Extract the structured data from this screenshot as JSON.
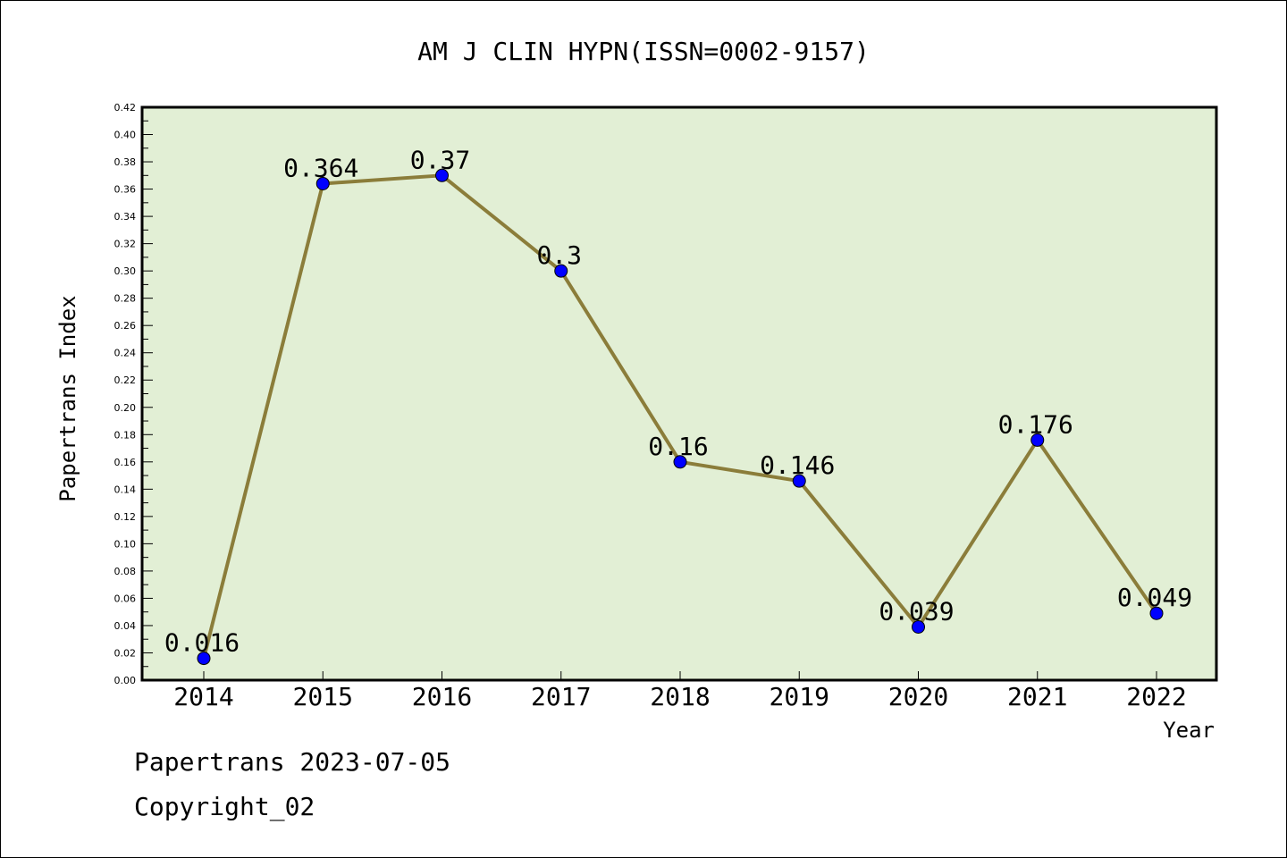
{
  "chart_data": {
    "type": "line",
    "title": "AM J CLIN HYPN(ISSN=0002-9157)",
    "xlabel": "Year",
    "ylabel": "Papertrans Index",
    "categories": [
      "2014",
      "2015",
      "2016",
      "2017",
      "2018",
      "2019",
      "2020",
      "2021",
      "2022"
    ],
    "series": [
      {
        "values": [
          0.016,
          0.364,
          0.37,
          0.3,
          0.16,
          0.146,
          0.039,
          0.176,
          0.049
        ],
        "labels": [
          "0.016",
          "0.364",
          "0.37",
          "0.3",
          "0.16",
          "0.146",
          "0.039",
          "0.176",
          "0.049"
        ]
      }
    ],
    "ylim": [
      0,
      0.42
    ],
    "ytick_labels": [
      "0.00",
      "0.02",
      "0.04",
      "0.06",
      "0.08",
      "0.10",
      "0.12",
      "0.14",
      "0.16",
      "0.18",
      "0.20",
      "0.22",
      "0.24",
      "0.26",
      "0.28",
      "0.30",
      "0.32",
      "0.34",
      "0.36",
      "0.38",
      "0.40",
      "0.42"
    ],
    "grid": false,
    "colors": {
      "plot_background": "#e2efd5",
      "line": "#8b7d3a",
      "marker": "#0000ff"
    }
  },
  "footer": {
    "stamp": "Papertrans 2023-07-05",
    "copyright": "Copyright_02"
  }
}
